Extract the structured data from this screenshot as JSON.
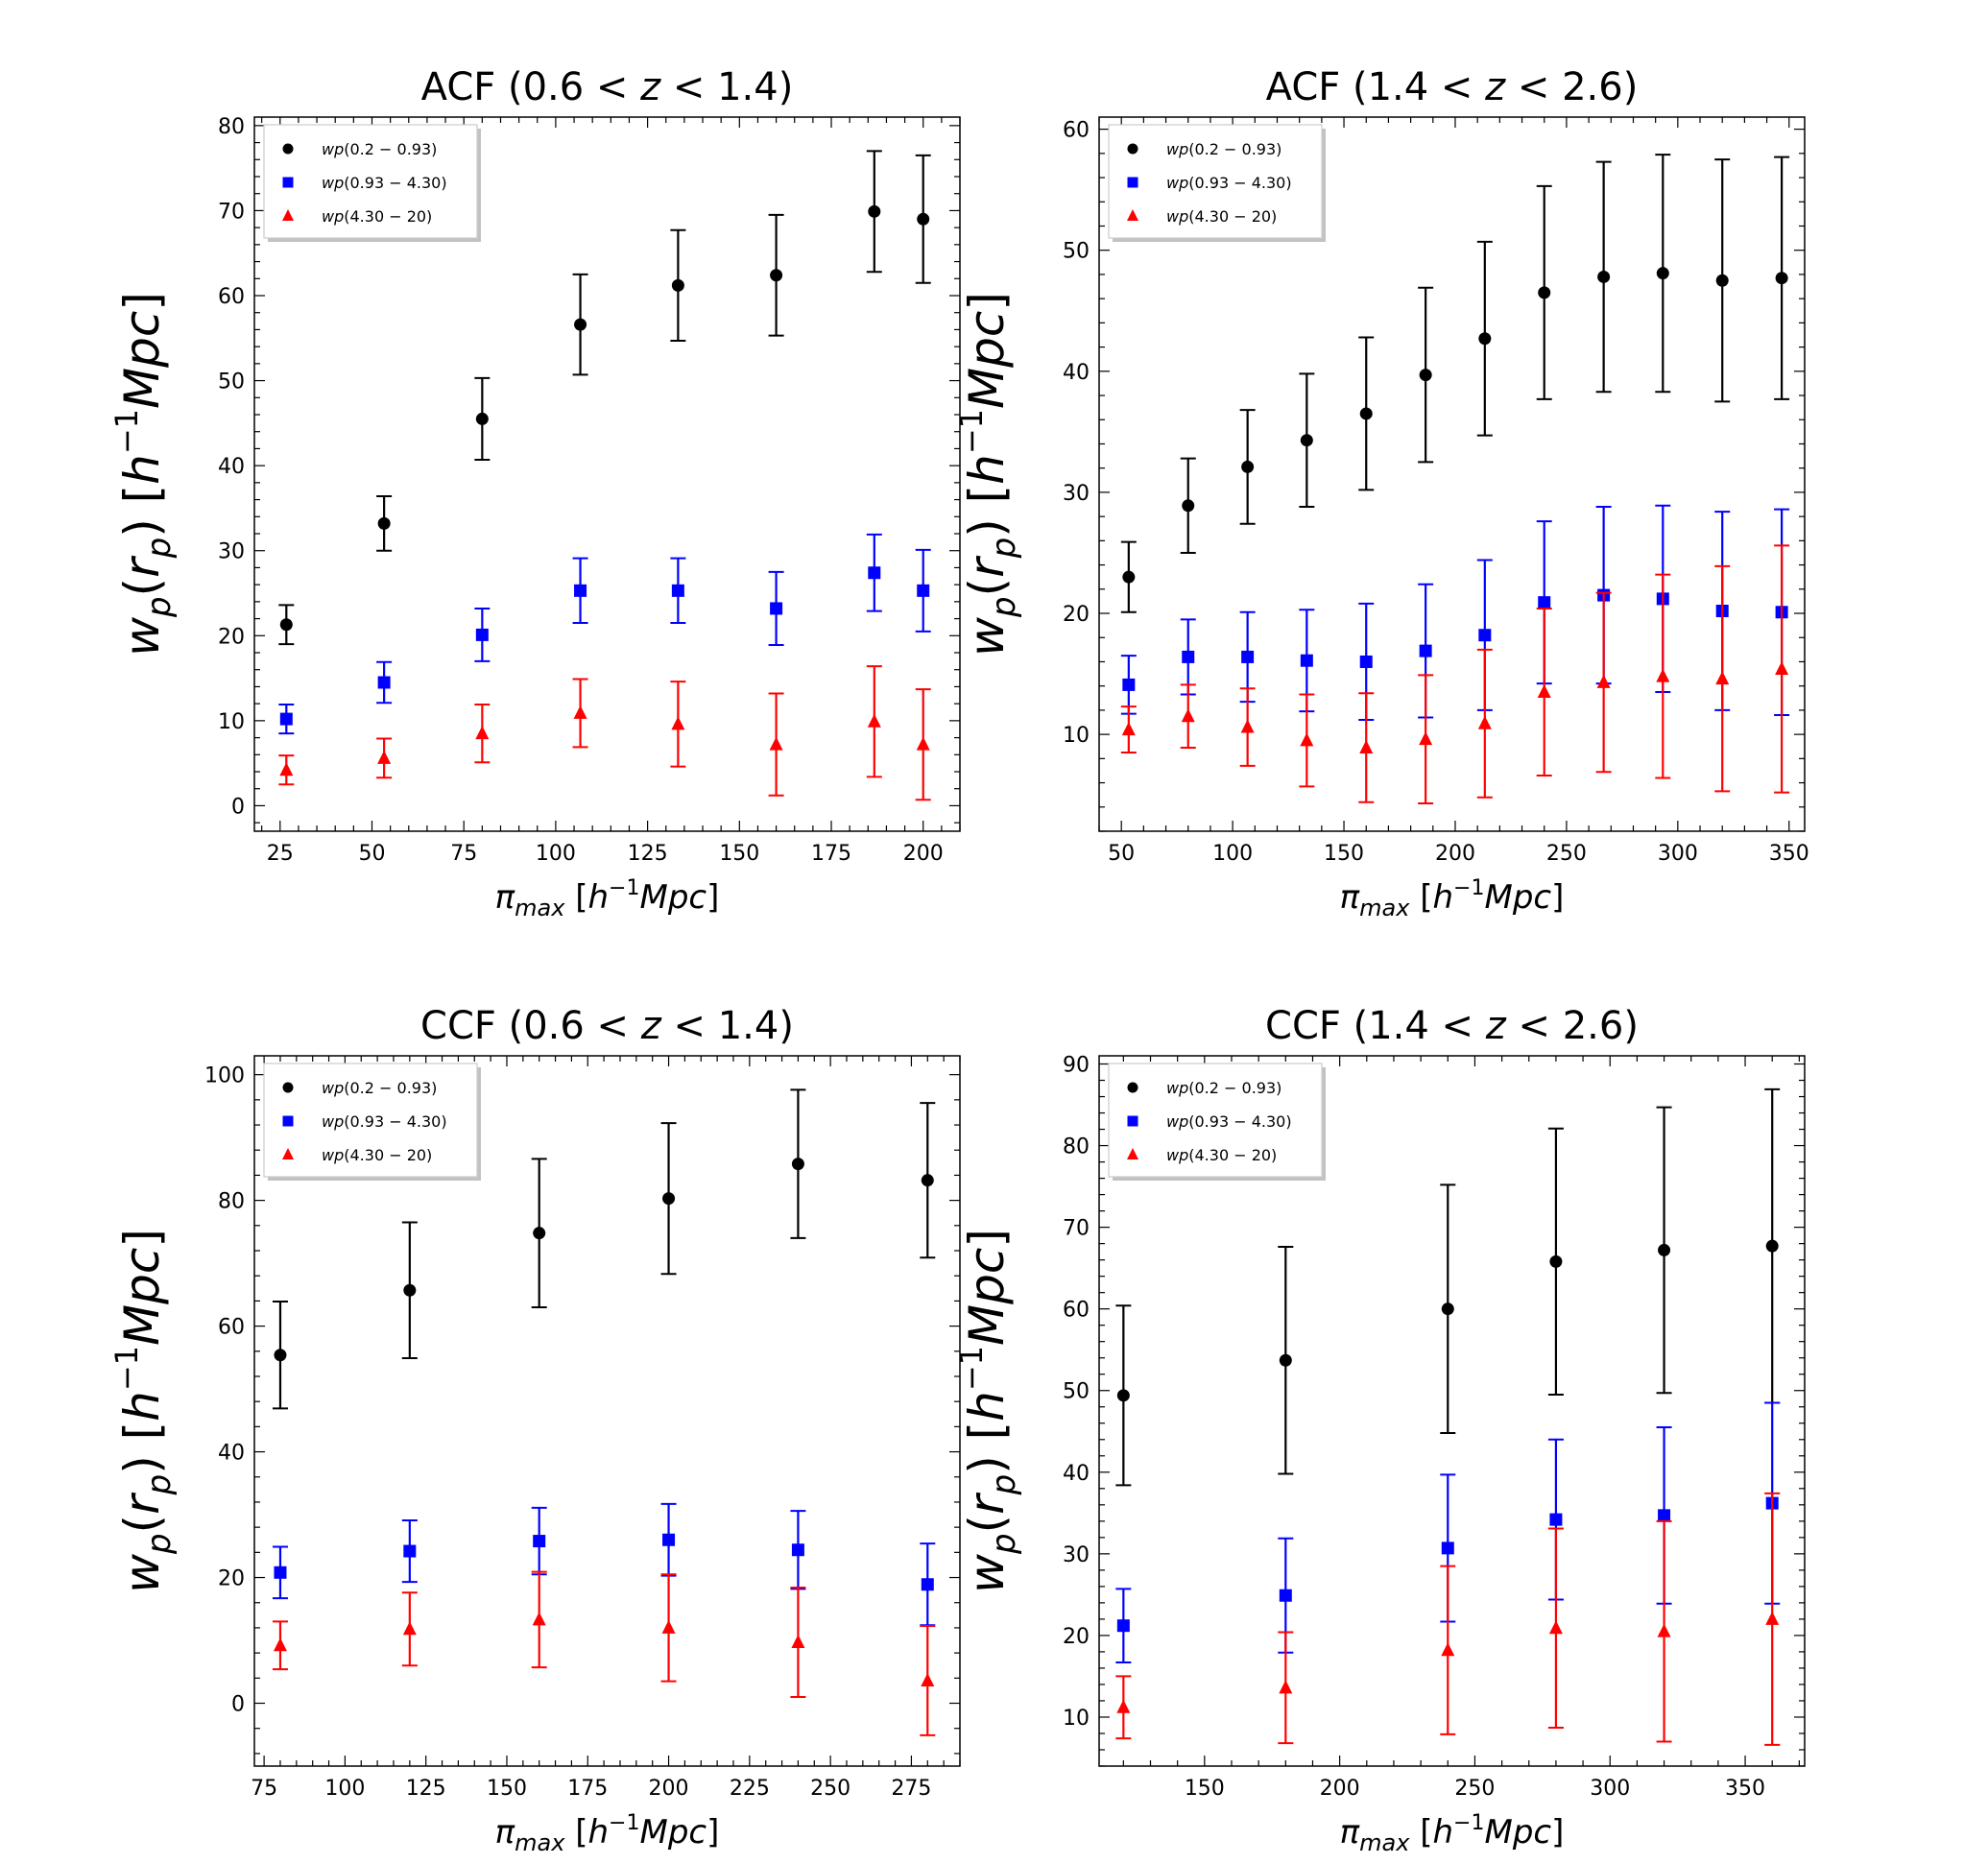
{
  "figure": {
    "colors": {
      "black": "#000000",
      "blue": "#0000ff",
      "red": "#ff0000"
    }
  },
  "chart_data": [
    {
      "type": "scatter",
      "title": "ACF (0.6 < z < 1.4)",
      "xlabel": "π_max [h⁻¹Mpc]",
      "ylabel": "w_p(r_p) [h⁻¹Mpc]",
      "xlim": [
        18,
        210
      ],
      "ylim": [
        -3,
        81
      ],
      "xticks": [
        25,
        50,
        75,
        100,
        125,
        150,
        175,
        200
      ],
      "yticks": [
        0,
        10,
        20,
        30,
        40,
        50,
        60,
        70,
        80
      ],
      "legend": "top-left",
      "series": [
        {
          "name": "wp(0.2 − 0.93)",
          "marker": "circle",
          "color": "#000000",
          "x": [
            26.7,
            53.3,
            80,
            106.7,
            133.3,
            160,
            186.7,
            200
          ],
          "y": [
            21.3,
            33.2,
            45.5,
            56.6,
            61.2,
            62.4,
            69.9,
            69.0
          ],
          "err": [
            2.3,
            3.2,
            4.8,
            5.9,
            6.5,
            7.1,
            7.1,
            7.5
          ]
        },
        {
          "name": "wp(0.93 − 4.30)",
          "marker": "square",
          "color": "#0000ff",
          "x": [
            26.7,
            53.3,
            80,
            106.7,
            133.3,
            160,
            186.7,
            200
          ],
          "y": [
            10.2,
            14.5,
            20.1,
            25.3,
            25.3,
            23.2,
            27.4,
            25.3
          ],
          "err": [
            1.7,
            2.4,
            3.1,
            3.8,
            3.8,
            4.3,
            4.5,
            4.8
          ]
        },
        {
          "name": "wp(4.30 − 20)",
          "marker": "triangle",
          "color": "#ff0000",
          "x": [
            26.7,
            53.3,
            80,
            106.7,
            133.3,
            160,
            186.7,
            200
          ],
          "y": [
            4.2,
            5.6,
            8.5,
            10.9,
            9.6,
            7.2,
            9.9,
            7.2
          ],
          "err": [
            1.7,
            2.3,
            3.4,
            4.0,
            5.0,
            6.0,
            6.5,
            6.5
          ]
        }
      ]
    },
    {
      "type": "scatter",
      "title": "ACF (1.4 < z < 2.6)",
      "xlabel": "π_max [h⁻¹Mpc]",
      "ylabel": "w_p(r_p) [h⁻¹Mpc]",
      "xlim": [
        40,
        357
      ],
      "ylim": [
        2,
        61
      ],
      "xticks": [
        50,
        100,
        150,
        200,
        250,
        300,
        350
      ],
      "yticks": [
        10,
        20,
        30,
        40,
        50,
        60
      ],
      "legend": "top-left",
      "series": [
        {
          "name": "wp(0.2 − 0.93)",
          "marker": "circle",
          "color": "#000000",
          "x": [
            53.3,
            80,
            106.7,
            133.3,
            160,
            186.7,
            213.3,
            240,
            266.7,
            293.3,
            320,
            346.7
          ],
          "y": [
            23.0,
            28.9,
            32.1,
            34.3,
            36.5,
            39.7,
            42.7,
            46.5,
            47.8,
            48.1,
            47.5,
            47.7
          ],
          "err": [
            2.9,
            3.9,
            4.7,
            5.5,
            6.3,
            7.2,
            8.0,
            8.8,
            9.5,
            9.8,
            10.0,
            10.0
          ]
        },
        {
          "name": "wp(0.93 − 4.30)",
          "marker": "square",
          "color": "#0000ff",
          "x": [
            53.3,
            80,
            106.7,
            133.3,
            160,
            186.7,
            213.3,
            240,
            266.7,
            293.3,
            320,
            346.7
          ],
          "y": [
            14.1,
            16.4,
            16.4,
            16.1,
            16.0,
            16.9,
            18.2,
            20.9,
            21.5,
            21.2,
            20.2,
            20.1
          ],
          "err": [
            2.4,
            3.1,
            3.7,
            4.2,
            4.8,
            5.5,
            6.2,
            6.7,
            7.3,
            7.7,
            8.2,
            8.5
          ]
        },
        {
          "name": "wp(4.30 − 20)",
          "marker": "triangle",
          "color": "#ff0000",
          "x": [
            53.3,
            80,
            106.7,
            133.3,
            160,
            186.7,
            213.3,
            240,
            266.7,
            293.3,
            320,
            346.7
          ],
          "y": [
            10.4,
            11.5,
            10.6,
            9.5,
            8.9,
            9.6,
            10.9,
            13.5,
            14.3,
            14.8,
            14.6,
            15.4
          ],
          "err": [
            1.9,
            2.6,
            3.2,
            3.8,
            4.5,
            5.3,
            6.1,
            6.9,
            7.4,
            8.4,
            9.3,
            10.2
          ]
        }
      ]
    },
    {
      "type": "scatter",
      "title": "CCF (0.6 < z < 1.4)",
      "xlabel": "π_max [h⁻¹Mpc]",
      "ylabel": "w_p(r_p) [h⁻¹Mpc]",
      "xlim": [
        72,
        290
      ],
      "ylim": [
        -10,
        103
      ],
      "xticks": [
        75,
        100,
        125,
        150,
        175,
        200,
        225,
        250,
        275
      ],
      "yticks": [
        0,
        20,
        40,
        60,
        80,
        100
      ],
      "legend": "top-left",
      "series": [
        {
          "name": "wp(0.2 − 0.93)",
          "marker": "circle",
          "color": "#000000",
          "x": [
            80,
            120,
            160,
            200,
            240,
            280
          ],
          "y": [
            55.4,
            65.7,
            74.8,
            80.3,
            85.8,
            83.2
          ],
          "err": [
            8.5,
            10.8,
            11.8,
            12.0,
            11.8,
            12.3
          ]
        },
        {
          "name": "wp(0.93 − 4.30)",
          "marker": "square",
          "color": "#0000ff",
          "x": [
            80,
            120,
            160,
            200,
            240,
            280
          ],
          "y": [
            20.8,
            24.2,
            25.8,
            26.0,
            24.4,
            18.9
          ],
          "err": [
            4.1,
            4.9,
            5.3,
            5.7,
            6.2,
            6.5
          ]
        },
        {
          "name": "wp(4.30 − 20)",
          "marker": "triangle",
          "color": "#ff0000",
          "x": [
            80,
            120,
            160,
            200,
            240,
            280
          ],
          "y": [
            9.2,
            11.8,
            13.3,
            12.0,
            9.7,
            3.6
          ],
          "err": [
            3.8,
            5.8,
            7.6,
            8.5,
            8.7,
            8.7
          ]
        }
      ]
    },
    {
      "type": "scatter",
      "title": "CCF (1.4 < z < 2.6)",
      "xlabel": "π_max [h⁻¹Mpc]",
      "ylabel": "w_p(r_p) [h⁻¹Mpc]",
      "xlim": [
        111,
        372
      ],
      "ylim": [
        4,
        91
      ],
      "xticks": [
        150,
        200,
        250,
        300,
        350
      ],
      "yticks": [
        10,
        20,
        30,
        40,
        50,
        60,
        70,
        80,
        90
      ],
      "legend": "top-left",
      "series": [
        {
          "name": "wp(0.2 − 0.93)",
          "marker": "circle",
          "color": "#000000",
          "x": [
            120,
            180,
            240,
            280,
            320,
            360
          ],
          "y": [
            49.4,
            53.7,
            60.0,
            65.8,
            67.2,
            67.7
          ],
          "err": [
            11.0,
            13.9,
            15.2,
            16.3,
            17.5,
            19.2
          ]
        },
        {
          "name": "wp(0.93 − 4.30)",
          "marker": "square",
          "color": "#0000ff",
          "x": [
            120,
            180,
            240,
            280,
            320,
            360
          ],
          "y": [
            21.2,
            24.9,
            30.7,
            34.2,
            34.7,
            36.2
          ],
          "err": [
            4.5,
            7.0,
            9.0,
            9.8,
            10.8,
            12.3
          ]
        },
        {
          "name": "wp(4.30 − 20)",
          "marker": "triangle",
          "color": "#ff0000",
          "x": [
            120,
            180,
            240,
            280,
            320,
            360
          ],
          "y": [
            11.2,
            13.6,
            18.2,
            20.9,
            20.5,
            22.0
          ],
          "err": [
            3.8,
            6.8,
            10.3,
            12.2,
            13.5,
            15.4
          ]
        }
      ]
    }
  ]
}
